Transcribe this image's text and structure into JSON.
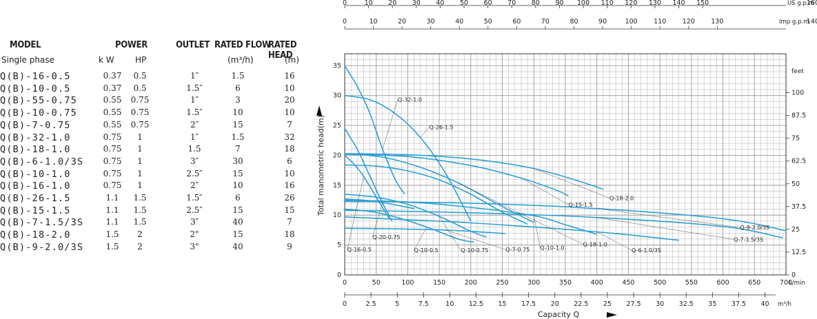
{
  "table": {
    "headers": {
      "model": "MODEL",
      "power": "POWER",
      "outlet": "OUTLET",
      "rated_flow": "RATED FLOW",
      "rated_head": "RATED HEAD"
    },
    "subheaders": {
      "phase": "Single phase",
      "kw": "k W",
      "hp": "HP",
      "flow_unit": "(m³/h)",
      "head_unit": "(m)"
    },
    "rows": [
      {
        "model": "Q(B)-16-0.5",
        "kw": "0.37",
        "hp": "0.5",
        "outlet": "1″",
        "flow": "1.5",
        "head": "16"
      },
      {
        "model": "Q(B)-10-0.5",
        "kw": "0.37",
        "hp": "0.5",
        "outlet": "1.5″",
        "flow": "6",
        "head": "10"
      },
      {
        "model": "Q(B)-55-0.75",
        "kw": "0.55",
        "hp": "0.75",
        "outlet": "1″",
        "flow": "3",
        "head": "20"
      },
      {
        "model": "Q(B)-10-0.75",
        "kw": "0.55",
        "hp": "0.75",
        "outlet": "1.5″",
        "flow": "10",
        "head": "10"
      },
      {
        "model": "Q(B)-7-0.75",
        "kw": "0.55",
        "hp": "0.75",
        "outlet": "2″",
        "flow": "15",
        "head": "7"
      },
      {
        "model": "Q(B)-32-1.0",
        "kw": "0.75",
        "hp": "1",
        "outlet": "1″",
        "flow": "1.5",
        "head": "32"
      },
      {
        "model": "Q(B)-18-1.0",
        "kw": "0.75",
        "hp": "1",
        "outlet": "1.5",
        "flow": "7",
        "head": "18"
      },
      {
        "model": "Q(B)-6-1.0/3S",
        "kw": "0.75",
        "hp": "1",
        "outlet": "3″",
        "flow": "30",
        "head": "6"
      },
      {
        "model": "Q(B)-10-1.0",
        "kw": "0.75",
        "hp": "1",
        "outlet": "2.5″",
        "flow": "15",
        "head": "10"
      },
      {
        "model": "Q(B)-16-1.0",
        "kw": "0.75",
        "hp": "1",
        "outlet": "2″",
        "flow": "10",
        "head": "16"
      },
      {
        "model": "Q(B)-26-1.5",
        "kw": "1.1",
        "hp": "1.5",
        "outlet": "1.5″",
        "flow": "6",
        "head": "26"
      },
      {
        "model": "Q(B)-15-1.5",
        "kw": "1.1",
        "hp": "1.5",
        "outlet": "2.5″",
        "flow": "15",
        "head": "15"
      },
      {
        "model": "Q(B)-7-1.5/3S",
        "kw": "1.1",
        "hp": "1.5",
        "outlet": "3″",
        "flow": "40",
        "head": "7"
      },
      {
        "model": "Q(B)-18-2.0",
        "kw": "1.5",
        "hp": "2",
        "outlet": "2\"",
        "flow": "15",
        "head": "18"
      },
      {
        "model": "Q(B)-9-2.0/3S",
        "kw": "1.5",
        "hp": "2",
        "outlet": "3\"",
        "flow": "40",
        "head": "9"
      }
    ]
  },
  "chart_data": {
    "type": "line",
    "title": "",
    "xlabel": "Capacity Q",
    "ylabel": "Total manometric head(m)",
    "xlim": [
      0,
      700
    ],
    "ylim": [
      0,
      37
    ],
    "grid": true,
    "x_unit_lmin": "L/min",
    "x_unit_m3h": "m³/h",
    "y_right_unit": "feet",
    "top_us_unit": "US g.p.m",
    "top_imp_unit": "Imp g.p.m",
    "top_us_end": "160",
    "top_imp_end": "140",
    "x_ticks_lmin": [
      "0",
      "50",
      "100",
      "150",
      "200",
      "250",
      "300",
      "350",
      "400",
      "450",
      "500",
      "550",
      "600",
      "650",
      "700"
    ],
    "x_ticks_m3h": [
      "0",
      "2.5",
      "5",
      "7.5",
      "10",
      "12.5",
      "15",
      "17.5",
      "20",
      "22.5",
      "25",
      "27.5",
      "30",
      "32.5",
      "35",
      "37.5",
      "40"
    ],
    "y_ticks": [
      "0",
      "5",
      "10",
      "15",
      "20",
      "25",
      "30",
      "35"
    ],
    "feet_ticks": [
      "0",
      "12.5",
      "25",
      "37.5",
      "50",
      "62.5",
      "75",
      "87.5",
      "100"
    ],
    "us_gpm_ticks": [
      "0",
      "10",
      "20",
      "30",
      "40",
      "50",
      "60",
      "70",
      "80",
      "90",
      "100",
      "110",
      "120",
      "130",
      "140",
      "150"
    ],
    "imp_gpm_ticks": [
      "0",
      "10",
      "20",
      "30",
      "40",
      "50",
      "60",
      "70",
      "80",
      "90",
      "100",
      "110",
      "120",
      "130"
    ],
    "series": [
      {
        "name": "Q-32-1.0",
        "x": [
          0,
          20,
          40,
          60,
          80,
          95
        ],
        "y": [
          35,
          31.5,
          27,
          21,
          16,
          13.5
        ],
        "label_at": [
          84,
          29
        ]
      },
      {
        "name": "Q-26-1.5",
        "x": [
          0,
          40,
          80,
          120,
          160,
          200
        ],
        "y": [
          30,
          29.3,
          27,
          23,
          17,
          9
        ],
        "label_at": [
          134,
          24.4
        ]
      },
      {
        "name": "Q-55-0.75",
        "x": [
          0,
          20,
          40,
          60,
          75
        ],
        "y": [
          24.5,
          21,
          16.5,
          12,
          9
        ],
        "label_at": null
      },
      {
        "name": "Q-18-2.0",
        "x": [
          0,
          100,
          200,
          300,
          380,
          410
        ],
        "y": [
          20.3,
          20.1,
          19.4,
          17.8,
          15.4,
          14.3
        ],
        "label_at": [
          420,
          12.5
        ]
      },
      {
        "name": "Q-15-1.5",
        "x": [
          0,
          100,
          200,
          280,
          335,
          355
        ],
        "y": [
          20.2,
          19.8,
          18.3,
          16.2,
          14.2,
          13.2
        ],
        "label_at": [
          355,
          11.4
        ]
      },
      {
        "name": "Q-16-1.0",
        "x": [
          0,
          50,
          100,
          150,
          200,
          250,
          290
        ],
        "y": [
          18.4,
          18.2,
          17.4,
          15.9,
          13.5,
          10.5,
          8.5
        ],
        "label_at": null
      },
      {
        "name": "Q-18-1.0",
        "x": [
          0,
          60,
          120,
          180,
          240,
          290,
          300
        ],
        "y": [
          20.3,
          19.7,
          18.0,
          15.4,
          12,
          9.3,
          8.8
        ],
        "label_at": [
          378,
          4.8
        ]
      },
      {
        "name": "Q-16-0.5",
        "x": [
          0,
          15,
          30,
          50,
          70
        ],
        "y": [
          20,
          18.5,
          16.5,
          13,
          9.5
        ],
        "label_at": [
          4,
          3.9
        ]
      },
      {
        "name": "Q-10-0.5",
        "x": [
          0,
          40,
          80,
          130,
          180,
          205
        ],
        "y": [
          11,
          10.6,
          9.7,
          8.0,
          6.0,
          5.5
        ],
        "label_at": [
          110,
          3.8
        ]
      },
      {
        "name": "Q-10-0.75",
        "x": [
          0,
          50,
          100,
          150,
          200,
          225
        ],
        "y": [
          13.5,
          13,
          11.8,
          9.8,
          7.3,
          6.3
        ],
        "label_at": [
          184,
          3.8
        ]
      },
      {
        "name": "Q-10-1.0",
        "x": [
          0,
          100,
          200,
          300,
          350,
          400
        ],
        "y": [
          12.5,
          12.2,
          11.3,
          9.9,
          8.4,
          6.8
        ],
        "label_at": [
          310,
          4.2
        ]
      },
      {
        "name": "Q-7-0.75",
        "x": [
          0,
          80,
          160,
          230,
          255
        ],
        "y": [
          7.8,
          7.7,
          7.5,
          7.1,
          6.9
        ],
        "label_at": [
          255,
          3.9
        ]
      },
      {
        "name": "Q-20-0.75",
        "x": [
          0,
          30,
          60,
          90,
          110
        ],
        "y": [
          12.7,
          12.5,
          12.1,
          11.5,
          11.1
        ],
        "label_at": [
          44,
          6
        ]
      },
      {
        "name": "Q-6-1.0/3S",
        "x": [
          0,
          200,
          400,
          530
        ],
        "y": [
          9.7,
          8.7,
          7.2,
          5.8
        ],
        "label_at": [
          455,
          3.8
        ]
      },
      {
        "name": "Q-7-1.5/3S",
        "x": [
          0,
          200,
          400,
          600,
          695
        ],
        "y": [
          10.8,
          10.4,
          9.6,
          8.1,
          6.2
        ],
        "label_at": [
          617,
          5.6
        ]
      },
      {
        "name": "Q-9-2.0/3S",
        "x": [
          0,
          200,
          400,
          600,
          700
        ],
        "y": [
          12.3,
          12.0,
          11.1,
          9.4,
          7.4
        ],
        "label_at": [
          627,
          7.6
        ]
      }
    ],
    "colors": {
      "curve": "#2a9fd6",
      "grid": "#9a9a9a",
      "axis": "#222222"
    }
  }
}
